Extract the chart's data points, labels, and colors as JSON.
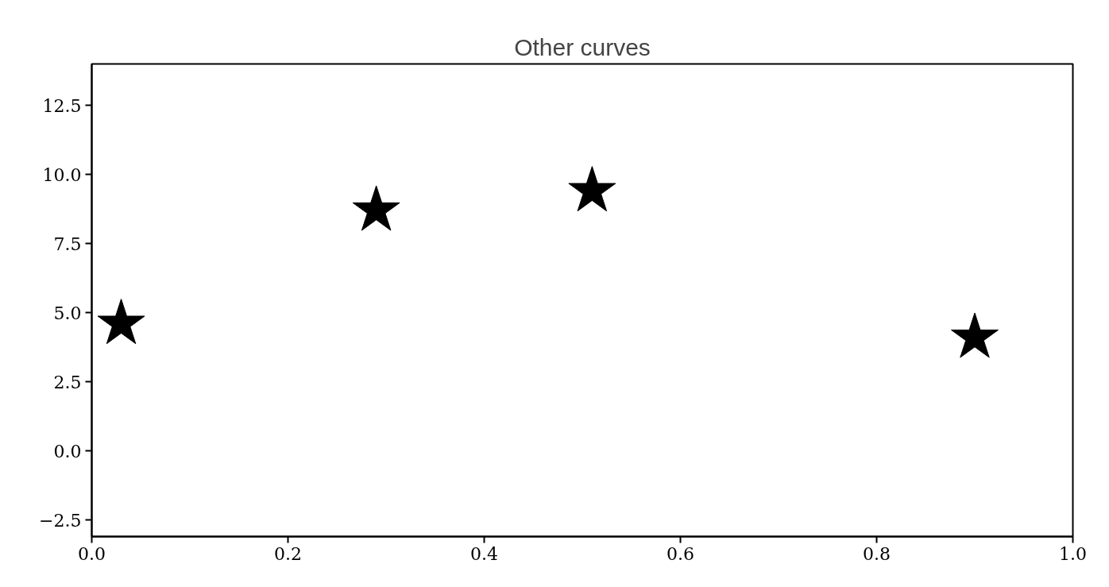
{
  "chart_data": {
    "type": "scatter",
    "title": "Other curves",
    "x": [
      0.03,
      0.29,
      0.51,
      0.9
    ],
    "series": [
      {
        "color": "#000000",
        "values": [
          4.6,
          8.7,
          9.4,
          4.1
        ]
      }
    ],
    "marker": "star",
    "xlim": [
      0,
      1
    ],
    "xticks": [
      {
        "value": 0,
        "label": "0.0"
      },
      0.2,
      0.4,
      0.6,
      0.8,
      {
        "value": 1,
        "label": "1.0"
      }
    ],
    "ylim": [
      -3.1,
      14
    ],
    "yticks": [
      {
        "value": -2.5,
        "label": "−2.5"
      },
      {
        "value": 0,
        "label": "0.0"
      },
      2.5,
      {
        "value": 5,
        "label": "5.0"
      },
      7.5,
      {
        "value": 10,
        "label": "10.0"
      },
      12.5
    ],
    "grid": false
  }
}
